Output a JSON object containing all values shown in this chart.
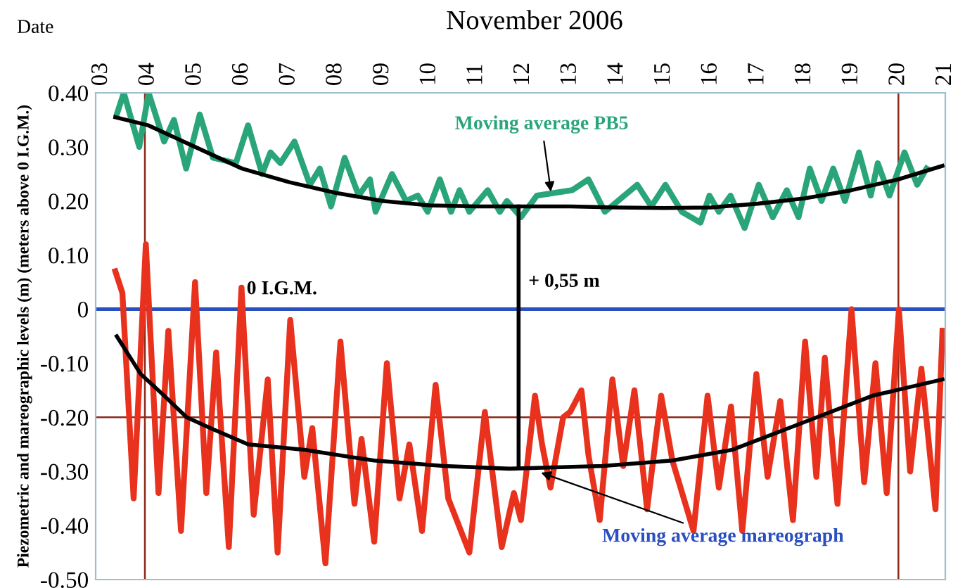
{
  "chart_data": {
    "type": "line",
    "title": "November 2006",
    "ylabel": "Piezometric and mareographic levels (m) (meters above 0 I.G.M.)",
    "xlim": [
      2.88,
      21
    ],
    "xticks": [
      {
        "value": 3,
        "label": "03"
      },
      {
        "value": 4,
        "label": "04"
      },
      {
        "value": 5,
        "label": "05"
      },
      {
        "value": 6,
        "label": "06"
      },
      {
        "value": 7,
        "label": "07"
      },
      {
        "value": 8,
        "label": "08"
      },
      {
        "value": 9,
        "label": "09"
      },
      10,
      11,
      12,
      13,
      14,
      15,
      16,
      17,
      18,
      19,
      20,
      21
    ],
    "ylim": [
      -0.5,
      0.4
    ],
    "yticks": [
      {
        "value": 0.4,
        "label": "0.40"
      },
      {
        "value": 0.3,
        "label": "0.30"
      },
      {
        "value": 0.2,
        "label": "0.20"
      },
      {
        "value": 0.1,
        "label": "0.10"
      },
      0,
      {
        "value": -0.1,
        "label": "-0.10"
      },
      {
        "value": -0.2,
        "label": "-0.20"
      },
      {
        "value": -0.3,
        "label": "-0.30"
      },
      {
        "value": -0.4,
        "label": "-0.40"
      },
      {
        "value": -0.5,
        "label": "-0.50"
      }
    ],
    "grid": false,
    "legend": false,
    "series": [
      {
        "color": "#e8321e",
        "x": [
          3.3,
          3.45,
          3.69,
          3.95,
          4.22,
          4.43,
          4.7,
          5.0,
          5.24,
          5.45,
          5.72,
          5.99,
          6.25,
          6.55,
          6.76,
          7.03,
          7.33,
          7.5,
          7.78,
          8.1,
          8.4,
          8.55,
          8.82,
          9.09,
          9.36,
          9.57,
          9.84,
          10.13,
          10.4,
          10.85,
          11.18,
          11.54,
          11.8,
          11.95,
          12.25,
          12.4,
          12.58,
          12.85,
          13.0,
          13.24,
          13.39,
          13.63,
          13.9,
          14.13,
          14.37,
          14.64,
          14.94,
          15.18,
          15.63,
          15.93,
          16.17,
          16.43,
          16.67,
          16.97,
          17.21,
          17.48,
          17.75,
          18.01,
          18.25,
          18.43,
          18.7,
          19.0,
          19.27,
          19.51,
          19.75,
          20.01,
          20.25,
          20.49,
          20.79,
          20.94
        ],
        "values": [
          0.07,
          0.03,
          -0.35,
          0.12,
          -0.34,
          -0.04,
          -0.41,
          0.05,
          -0.34,
          -0.08,
          -0.44,
          0.04,
          -0.38,
          -0.13,
          -0.45,
          -0.02,
          -0.31,
          -0.22,
          -0.47,
          -0.06,
          -0.36,
          -0.24,
          -0.43,
          -0.1,
          -0.35,
          -0.25,
          -0.41,
          -0.14,
          -0.35,
          -0.45,
          -0.19,
          -0.44,
          -0.34,
          -0.39,
          -0.16,
          -0.25,
          -0.33,
          -0.2,
          -0.19,
          -0.15,
          -0.27,
          -0.39,
          -0.13,
          -0.29,
          -0.15,
          -0.37,
          -0.16,
          -0.28,
          -0.41,
          -0.16,
          -0.33,
          -0.18,
          -0.41,
          -0.12,
          -0.31,
          -0.17,
          -0.39,
          -0.06,
          -0.31,
          -0.09,
          -0.36,
          0.0,
          -0.32,
          -0.1,
          -0.34,
          0.0,
          -0.3,
          -0.11,
          -0.37,
          -0.04
        ]
      },
      {
        "color": "#2aa57a",
        "x": [
          3.33,
          3.48,
          3.81,
          4.01,
          4.34,
          4.55,
          4.81,
          5.1,
          5.38,
          5.87,
          6.13,
          6.43,
          6.61,
          6.82,
          7.12,
          7.45,
          7.66,
          7.9,
          8.19,
          8.49,
          8.73,
          8.85,
          9.2,
          9.5,
          9.75,
          9.96,
          10.22,
          10.46,
          10.64,
          10.85,
          11.24,
          11.5,
          11.65,
          11.95,
          12.29,
          13.04,
          13.39,
          13.74,
          14.43,
          14.73,
          15.03,
          15.38,
          15.78,
          15.97,
          16.17,
          16.42,
          16.72,
          17.02,
          17.32,
          17.62,
          17.87,
          18.11,
          18.36,
          18.61,
          18.86,
          19.16,
          19.41,
          19.56,
          19.81,
          20.13,
          20.4,
          20.6
        ],
        "values": [
          0.36,
          0.4,
          0.3,
          0.4,
          0.31,
          0.35,
          0.26,
          0.36,
          0.28,
          0.27,
          0.34,
          0.25,
          0.29,
          0.27,
          0.31,
          0.23,
          0.26,
          0.19,
          0.28,
          0.21,
          0.24,
          0.18,
          0.25,
          0.2,
          0.21,
          0.18,
          0.24,
          0.18,
          0.22,
          0.18,
          0.22,
          0.18,
          0.2,
          0.17,
          0.21,
          0.22,
          0.24,
          0.18,
          0.23,
          0.19,
          0.23,
          0.18,
          0.16,
          0.21,
          0.18,
          0.21,
          0.15,
          0.23,
          0.17,
          0.22,
          0.17,
          0.26,
          0.2,
          0.26,
          0.2,
          0.29,
          0.21,
          0.27,
          0.21,
          0.29,
          0.23,
          0.26
        ]
      },
      {
        "color": "#000000",
        "x": [
          3.3,
          4,
          5,
          6,
          7,
          8,
          9,
          10,
          11,
          12,
          13,
          14,
          15,
          16,
          17,
          18,
          19,
          20,
          20.94
        ],
        "values": [
          0.355,
          0.34,
          0.3,
          0.26,
          0.235,
          0.215,
          0.2,
          0.192,
          0.19,
          0.19,
          0.19,
          0.188,
          0.187,
          0.188,
          0.195,
          0.205,
          0.22,
          0.24,
          0.265
        ]
      },
      {
        "color": "#000000",
        "x": [
          3.33,
          3.84,
          4.34,
          4.82,
          5.33,
          6.13,
          7.33,
          8.82,
          10.3,
          11.7,
          13.7,
          15.18,
          16.46,
          17.96,
          19.45,
          20.94
        ],
        "values": [
          -0.05,
          -0.12,
          -0.16,
          -0.2,
          -0.22,
          -0.25,
          -0.26,
          -0.28,
          -0.29,
          -0.295,
          -0.29,
          -0.28,
          -0.26,
          -0.21,
          -0.16,
          -0.13
        ]
      },
      {
        "color": "#000000",
        "x": [
          11.9,
          11.9
        ],
        "values": [
          0.19,
          -0.29
        ]
      }
    ],
    "ref_lines": [
      {
        "axis": "y",
        "value": 0,
        "label": "0 I.G.M.",
        "color": "#2a4fc0"
      },
      {
        "axis": "y",
        "value": -0.2,
        "color": "#8b2a1a"
      },
      {
        "axis": "x",
        "value": 3.93,
        "color": "#8b2a1a"
      },
      {
        "axis": "x",
        "value": 20,
        "color": "#8b2a1a"
      }
    ],
    "annotations": [
      "Date",
      {
        "text": "Moving average PB5",
        "x": 12.6,
        "y": 0.21
      },
      {
        "text": "+ 0,55 m",
        "x": 11.9,
        "y": 0.05
      },
      {
        "text": "Moving average mareograph",
        "x": 12.3,
        "y": -0.3
      }
    ]
  }
}
